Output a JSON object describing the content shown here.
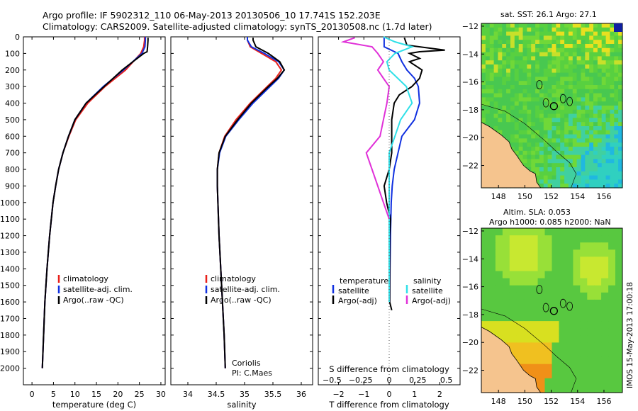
{
  "header": {
    "title_line1": "Argo profile: IF 5902312_110 06-May-2013 20130506_10 17.741S 152.203E",
    "title_line2": "Climatology: CARS2009. Satellite-adjusted climatology: synTS_20130508.nc (1.7d later)"
  },
  "colors": {
    "climatology": "#e8201a",
    "satellite": "#1030e0",
    "argo": "#000000",
    "sat_salinity": "#30e0e8",
    "argo_salinity": "#e030d8",
    "land": "#f5c48e"
  },
  "chart_data": [
    {
      "id": "temperature",
      "type": "line",
      "xlabel": "temperature (deg C)",
      "xlim": [
        -2,
        31
      ],
      "ylim": [
        0,
        2100
      ],
      "xticks": [
        0,
        5,
        10,
        15,
        20,
        25,
        30
      ],
      "xtick_labels": [
        "0",
        "5",
        "10",
        "15",
        "20",
        "25",
        "30"
      ],
      "yticks": [
        0,
        100,
        200,
        300,
        400,
        500,
        600,
        700,
        800,
        900,
        1000,
        1100,
        1200,
        1300,
        1400,
        1500,
        1600,
        1700,
        1800,
        1900,
        2000
      ],
      "ytick_labels": [
        "0",
        "100",
        "200",
        "300",
        "400",
        "500",
        "600",
        "700",
        "800",
        "900",
        "1000",
        "1100",
        "1200",
        "1300",
        "1400",
        "1500",
        "1600",
        "1700",
        "1800",
        "1900",
        "2000"
      ],
      "legend": [
        "climatology",
        "satellite-adj. clim.",
        "Argo(..raw -QC)"
      ],
      "series": [
        {
          "name": "climatology",
          "depth": [
            0,
            20,
            60,
            100,
            200,
            300,
            400,
            500,
            600,
            700,
            800,
            900,
            1000,
            1200,
            1400,
            1600,
            1800,
            2000
          ],
          "values": [
            26.2,
            26.2,
            26.0,
            25.3,
            21.8,
            17.0,
            13.0,
            10.2,
            8.6,
            7.2,
            6.2,
            5.5,
            4.9,
            4.1,
            3.5,
            3.0,
            2.7,
            2.4
          ]
        },
        {
          "name": "satellite-adj. clim.",
          "depth": [
            0,
            20,
            60,
            100,
            200,
            300,
            400,
            500,
            600,
            700,
            800,
            900,
            1000,
            1200,
            1400,
            1600,
            1800,
            2000
          ],
          "values": [
            26.4,
            26.4,
            26.3,
            25.6,
            21.3,
            16.6,
            12.6,
            10.0,
            8.5,
            7.2,
            6.2,
            5.5,
            4.9,
            4.1,
            3.5,
            3.0,
            2.7,
            2.4
          ]
        },
        {
          "name": "Argo(..raw -QC)",
          "depth": [
            5,
            20,
            60,
            90,
            100,
            150,
            200,
            300,
            400,
            500,
            600,
            700,
            800,
            900,
            1000,
            1200,
            1400,
            1600,
            1800,
            2000
          ],
          "values": [
            27.0,
            27.0,
            26.9,
            26.8,
            26.0,
            23.5,
            21.0,
            16.8,
            12.6,
            10.0,
            8.5,
            7.2,
            6.2,
            5.5,
            4.9,
            4.1,
            3.5,
            3.0,
            2.7,
            2.4
          ]
        }
      ]
    },
    {
      "id": "salinity",
      "type": "line",
      "xlabel": "salinity",
      "xlim": [
        33.7,
        36.2
      ],
      "ylim": [
        0,
        2100
      ],
      "xticks": [
        34,
        34.5,
        35,
        35.5,
        36
      ],
      "xtick_labels": [
        "34",
        "34.5",
        "35",
        "35.5",
        "36"
      ],
      "legend": [
        "climatology",
        "satellite-adj. clim.",
        "Argo(..raw -QC)"
      ],
      "annotations": [
        "Coriolis",
        "PI: C.Maes"
      ],
      "series": [
        {
          "name": "climatology",
          "depth": [
            0,
            20,
            60,
            100,
            150,
            200,
            250,
            300,
            400,
            500,
            600,
            700,
            800,
            900,
            1000,
            1200,
            1400,
            1600,
            1800,
            2000
          ],
          "values": [
            35.05,
            35.05,
            35.1,
            35.3,
            35.55,
            35.65,
            35.55,
            35.4,
            35.1,
            34.85,
            34.65,
            34.55,
            34.52,
            34.52,
            34.53,
            34.55,
            34.58,
            34.61,
            34.64,
            34.66
          ]
        },
        {
          "name": "satellite-adj. clim.",
          "depth": [
            0,
            20,
            60,
            100,
            150,
            200,
            250,
            300,
            400,
            500,
            600,
            700,
            800,
            900,
            1000,
            1200,
            1400,
            1600,
            1800,
            2000
          ],
          "values": [
            35.05,
            35.05,
            35.12,
            35.35,
            35.6,
            35.7,
            35.6,
            35.45,
            35.15,
            34.9,
            34.67,
            34.56,
            34.52,
            34.52,
            34.53,
            34.55,
            34.58,
            34.61,
            34.64,
            34.66
          ]
        },
        {
          "name": "Argo(..raw -QC)",
          "depth": [
            5,
            20,
            60,
            100,
            150,
            200,
            250,
            300,
            400,
            500,
            600,
            700,
            800,
            900,
            1000,
            1200,
            1400,
            1600,
            1800,
            2000
          ],
          "values": [
            35.15,
            35.15,
            35.2,
            35.42,
            35.62,
            35.7,
            35.58,
            35.42,
            35.12,
            34.88,
            34.66,
            34.55,
            34.52,
            34.52,
            34.53,
            34.55,
            34.58,
            34.61,
            34.64,
            34.66
          ]
        }
      ]
    },
    {
      "id": "difference",
      "type": "line",
      "xlabel": "T difference from climatology",
      "xlabel_top": "S difference from climatology",
      "xlim": [
        -2.8,
        2.8
      ],
      "ylim": [
        0,
        2100
      ],
      "xticks": [
        -2,
        -1,
        0,
        1,
        2
      ],
      "xtick_labels": [
        "−2",
        "−1",
        "0",
        "1",
        "2"
      ],
      "s_xticks": [
        -0.5,
        -0.25,
        0,
        0.25,
        0.5
      ],
      "s_xtick_labels": [
        "−0.5",
        "−0.25",
        "0",
        "0.25",
        "0.5"
      ],
      "legend_temperature": [
        "temperature",
        "satellite",
        "Argo(-adj)"
      ],
      "legend_salinity": [
        "salinity",
        "satellite",
        "Argo(-adj)"
      ],
      "series": [
        {
          "name": "temperature satellite",
          "depth": [
            0,
            60,
            100,
            150,
            200,
            250,
            300,
            400,
            500,
            600,
            700,
            800,
            900,
            1000,
            1200,
            1400,
            1600
          ],
          "values": [
            -0.2,
            -0.2,
            0.35,
            0.5,
            0.7,
            1.0,
            1.15,
            1.2,
            1.0,
            0.5,
            0.35,
            0.2,
            0.12,
            0.08,
            0.05,
            0.03,
            0.02
          ]
        },
        {
          "name": "temperature Argo(-adj)",
          "depth": [
            5,
            50,
            80,
            90,
            100,
            130,
            150,
            200,
            250,
            300,
            350,
            400,
            500,
            600,
            700,
            800,
            900,
            1000,
            1100,
            1200,
            1400,
            1600,
            1650
          ],
          "values": [
            0.6,
            0.7,
            2.2,
            1.2,
            0.8,
            1.2,
            0.8,
            1.3,
            1.2,
            0.9,
            0.4,
            0.2,
            0.1,
            0.1,
            0.1,
            0.0,
            -0.2,
            -0.1,
            0.05,
            0.02,
            0.02,
            0.02,
            0.1
          ]
        },
        {
          "name": "salinity satellite",
          "depth": [
            0,
            30,
            60,
            100,
            150,
            200,
            300,
            400,
            500,
            600,
            700,
            800,
            900,
            1000,
            1200,
            1400,
            1600
          ],
          "values": [
            -0.05,
            0.05,
            0.2,
            0.05,
            -0.02,
            0.0,
            0.15,
            0.2,
            0.1,
            0.05,
            0.0,
            0.0,
            0.0,
            0.0,
            0.0,
            0.0,
            0.0
          ]
        },
        {
          "name": "salinity Argo(-adj)",
          "depth": [
            5,
            30,
            60,
            100,
            150,
            200,
            250,
            300,
            400,
            500,
            600,
            700,
            800,
            900,
            1000,
            1100
          ],
          "values": [
            -0.3,
            -0.4,
            -0.15,
            -0.1,
            -0.05,
            -0.1,
            -0.05,
            0.0,
            -0.02,
            -0.05,
            -0.08,
            -0.2,
            -0.15,
            -0.1,
            -0.05,
            0.0
          ]
        }
      ]
    },
    {
      "id": "sst_map",
      "type": "heatmap",
      "title": "sat. SST: 26.1  Argo: 27.1",
      "xlim": [
        146.7,
        157.4
      ],
      "ylim": [
        -23.6,
        -11.8
      ],
      "xticks": [
        148,
        150,
        152,
        154,
        156
      ],
      "xtick_labels": [
        "148",
        "150",
        "152",
        "154",
        "156"
      ],
      "yticks": [
        -12,
        -14,
        -16,
        -18,
        -20,
        -22
      ],
      "ytick_labels": [
        "−12",
        "−14",
        "−16",
        "−18",
        "−20",
        "−22"
      ],
      "float_position": [
        152.203,
        -17.741
      ]
    },
    {
      "id": "sla_map",
      "type": "heatmap",
      "title_line1": "Altim. SLA: 0.053",
      "title_line2": "Argo h1000: 0.085 h2000: NaN",
      "xlim": [
        146.7,
        157.4
      ],
      "ylim": [
        -23.6,
        -11.8
      ],
      "xticks": [
        148,
        150,
        152,
        154,
        156
      ],
      "xtick_labels": [
        "148",
        "150",
        "152",
        "154",
        "156"
      ],
      "yticks": [
        -12,
        -14,
        -16,
        -18,
        -20,
        -22
      ],
      "ytick_labels": [
        "−12",
        "−14",
        "−16",
        "−18",
        "−20",
        "−22"
      ],
      "float_position": [
        152.203,
        -17.741
      ]
    }
  ],
  "footer": {
    "imos_stamp": "IMOS 15-May-2013 17:00:18"
  }
}
